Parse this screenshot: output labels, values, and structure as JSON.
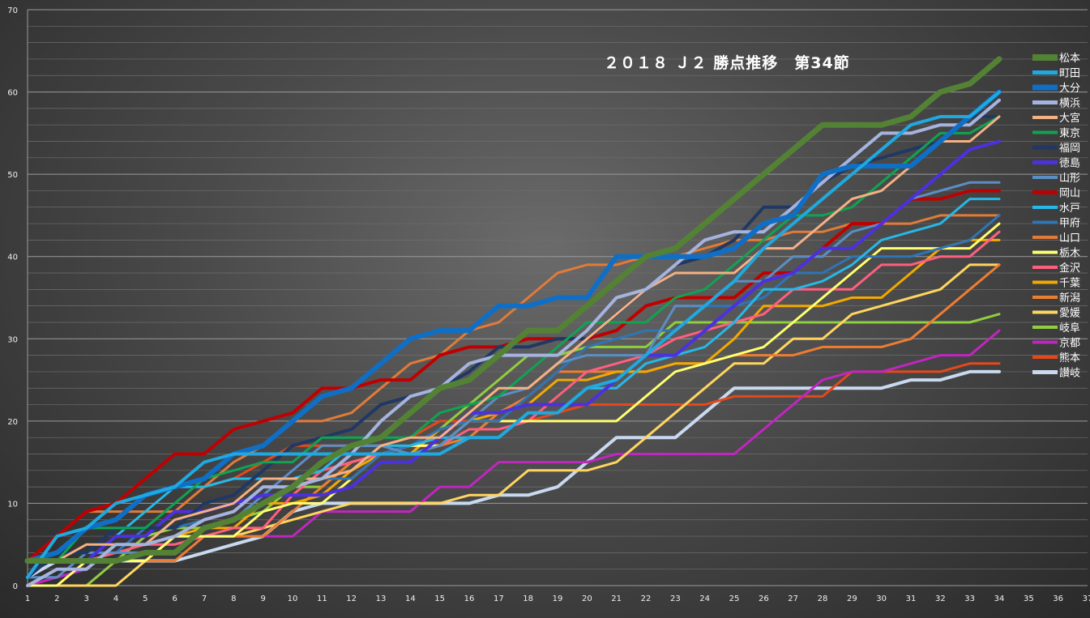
{
  "chart_data": {
    "type": "line",
    "title": "２０１８ Ｊ２ 勝点推移　第34節",
    "xlabel": "",
    "ylabel": "",
    "xlim": [
      1,
      37
    ],
    "ylim": [
      0,
      70
    ],
    "x_ticks": [
      "1",
      "2",
      "3",
      "4",
      "5",
      "6",
      "7",
      "8",
      "9",
      "10",
      "11",
      "12",
      "13",
      "14",
      "15",
      "16",
      "17",
      "18",
      "19",
      "20",
      "21",
      "22",
      "23",
      "24",
      "25",
      "26",
      "27",
      "28",
      "29",
      "30",
      "31",
      "32",
      "33",
      "34",
      "35",
      "36",
      "37"
    ],
    "y_ticks": [
      "0",
      "10",
      "20",
      "30",
      "40",
      "50",
      "60",
      "70"
    ],
    "grid": true,
    "legend_position": "right",
    "series": [
      {
        "name": "松本",
        "color": "#548235",
        "width": 7,
        "values": [
          3,
          3,
          3,
          3,
          4,
          4,
          7,
          8,
          10,
          12,
          15,
          17,
          18,
          21,
          24,
          25,
          28,
          31,
          31,
          34,
          37,
          40,
          41,
          44,
          47,
          50,
          53,
          56,
          56,
          56,
          57,
          60,
          61,
          64
        ]
      },
      {
        "name": "町田",
        "color": "#1fa9e0",
        "width": 4,
        "values": [
          1,
          6,
          7,
          10,
          11,
          12,
          15,
          16,
          16,
          16,
          16,
          16,
          16,
          16,
          16,
          18,
          18,
          21,
          21,
          24,
          25,
          28,
          31,
          34,
          37,
          41,
          44,
          47,
          50,
          53,
          56,
          57,
          57,
          60
        ]
      },
      {
        "name": "大分",
        "color": "#0f6fc6",
        "width": 6,
        "values": [
          3,
          4,
          7,
          8,
          11,
          12,
          13,
          16,
          17,
          20,
          23,
          24,
          27,
          30,
          31,
          31,
          34,
          34,
          35,
          35,
          40,
          40,
          40,
          40,
          41,
          44,
          45,
          50,
          51,
          51,
          51,
          54,
          57,
          60
        ]
      },
      {
        "name": "横浜",
        "color": "#a5b4de",
        "width": 4,
        "values": [
          0,
          2,
          2,
          5,
          5,
          6,
          8,
          9,
          12,
          12,
          13,
          16,
          20,
          23,
          24,
          27,
          28,
          28,
          28,
          31,
          35,
          36,
          39,
          42,
          43,
          43,
          46,
          49,
          52,
          55,
          55,
          56,
          56,
          59
        ]
      },
      {
        "name": "大宮",
        "color": "#f4b183",
        "width": 3,
        "values": [
          3,
          3,
          5,
          5,
          5,
          8,
          9,
          10,
          13,
          13,
          13,
          14,
          17,
          18,
          18,
          21,
          24,
          24,
          27,
          30,
          33,
          36,
          38,
          38,
          38,
          41,
          41,
          44,
          47,
          48,
          51,
          54,
          54,
          57
        ]
      },
      {
        "name": "東京",
        "color": "#10a352",
        "width": 3,
        "values": [
          3,
          3,
          7,
          7,
          7,
          10,
          13,
          14,
          15,
          15,
          18,
          18,
          18,
          18,
          21,
          22,
          23,
          26,
          29,
          32,
          32,
          32,
          35,
          36,
          39,
          42,
          45,
          45,
          46,
          49,
          52,
          55,
          55,
          57
        ]
      },
      {
        "name": "福岡",
        "color": "#203864",
        "width": 4,
        "values": [
          1,
          4,
          4,
          7,
          7,
          7,
          10,
          11,
          14,
          17,
          18,
          19,
          22,
          23,
          24,
          26,
          29,
          29,
          30,
          30,
          33,
          36,
          39,
          40,
          42,
          46,
          46,
          49,
          51,
          52,
          53,
          54,
          57,
          57
        ]
      },
      {
        "name": "徳島",
        "color": "#4b31e0",
        "width": 4,
        "values": [
          3,
          3,
          3,
          6,
          6,
          9,
          9,
          10,
          11,
          11,
          11,
          12,
          15,
          15,
          18,
          21,
          21,
          22,
          22,
          22,
          25,
          28,
          28,
          31,
          34,
          37,
          38,
          41,
          41,
          44,
          47,
          50,
          53,
          54
        ]
      },
      {
        "name": "山形",
        "color": "#5b8ec4",
        "width": 3,
        "values": [
          1,
          1,
          4,
          4,
          4,
          4,
          7,
          8,
          11,
          14,
          17,
          17,
          17,
          16,
          17,
          20,
          23,
          24,
          27,
          28,
          28,
          28,
          34,
          34,
          37,
          37,
          40,
          40,
          43,
          44,
          47,
          48,
          49,
          49
        ]
      },
      {
        "name": "岡山",
        "color": "#c00000",
        "width": 4,
        "values": [
          3,
          6,
          9,
          10,
          13,
          16,
          16,
          19,
          20,
          21,
          24,
          24,
          25,
          25,
          28,
          29,
          29,
          30,
          30,
          30,
          31,
          34,
          35,
          35,
          35,
          38,
          38,
          41,
          44,
          44,
          47,
          47,
          48,
          48
        ]
      },
      {
        "name": "水戸",
        "color": "#26b8e8",
        "width": 3,
        "values": [
          3,
          3,
          3,
          6,
          9,
          12,
          12,
          13,
          13,
          13,
          14,
          17,
          17,
          17,
          18,
          18,
          18,
          21,
          21,
          24,
          24,
          27,
          28,
          29,
          32,
          36,
          36,
          37,
          39,
          42,
          43,
          44,
          47,
          47
        ]
      },
      {
        "name": "甲府",
        "color": "#2e75b6",
        "width": 3,
        "values": [
          1,
          4,
          4,
          4,
          7,
          7,
          8,
          9,
          12,
          12,
          13,
          13,
          16,
          17,
          19,
          20,
          20,
          23,
          26,
          29,
          30,
          31,
          31,
          34,
          34,
          35,
          38,
          38,
          40,
          40,
          40,
          41,
          42,
          45
        ]
      },
      {
        "name": "山口",
        "color": "#e07b39",
        "width": 3,
        "values": [
          3,
          6,
          9,
          9,
          9,
          9,
          12,
          15,
          17,
          20,
          20,
          21,
          24,
          27,
          28,
          31,
          32,
          35,
          38,
          39,
          39,
          40,
          40,
          41,
          42,
          42,
          43,
          43,
          44,
          44,
          44,
          45,
          45,
          45
        ]
      },
      {
        "name": "栃木",
        "color": "#ffff70",
        "width": 3,
        "values": [
          0,
          0,
          3,
          3,
          3,
          6,
          6,
          6,
          9,
          10,
          10,
          13,
          16,
          17,
          17,
          20,
          20,
          20,
          20,
          20,
          20,
          23,
          26,
          27,
          28,
          29,
          32,
          35,
          38,
          41,
          41,
          41,
          41,
          44
        ]
      },
      {
        "name": "金沢",
        "color": "#ff5f7e",
        "width": 3,
        "values": [
          0,
          0,
          3,
          4,
          5,
          5,
          6,
          7,
          7,
          11,
          14,
          15,
          16,
          17,
          17,
          19,
          19,
          20,
          23,
          26,
          27,
          28,
          30,
          31,
          32,
          33,
          36,
          36,
          36,
          39,
          39,
          40,
          40,
          43
        ]
      },
      {
        "name": "千葉",
        "color": "#f2a900",
        "width": 3,
        "values": [
          3,
          3,
          3,
          3,
          3,
          6,
          7,
          7,
          10,
          10,
          11,
          14,
          16,
          16,
          19,
          20,
          21,
          22,
          25,
          25,
          26,
          26,
          27,
          27,
          30,
          34,
          34,
          34,
          35,
          35,
          38,
          41,
          42,
          42
        ]
      },
      {
        "name": "新潟",
        "color": "#ee7d31",
        "width": 3,
        "values": [
          3,
          3,
          3,
          3,
          3,
          3,
          6,
          6,
          6,
          9,
          12,
          15,
          16,
          17,
          17,
          18,
          21,
          23,
          26,
          26,
          26,
          26,
          27,
          27,
          28,
          28,
          28,
          29,
          29,
          29,
          30,
          33,
          36,
          39
        ]
      },
      {
        "name": "愛媛",
        "color": "#ffd55f",
        "width": 3,
        "values": [
          0,
          0,
          0,
          0,
          3,
          6,
          6,
          6,
          7,
          8,
          9,
          10,
          10,
          10,
          10,
          11,
          11,
          14,
          14,
          14,
          15,
          18,
          21,
          24,
          27,
          27,
          30,
          30,
          33,
          34,
          35,
          36,
          39,
          39
        ]
      },
      {
        "name": "岐阜",
        "color": "#8fce3f",
        "width": 3,
        "values": [
          0,
          0,
          0,
          3,
          6,
          7,
          7,
          8,
          9,
          12,
          12,
          15,
          16,
          16,
          19,
          22,
          25,
          28,
          28,
          29,
          29,
          29,
          32,
          32,
          32,
          32,
          32,
          32,
          32,
          32,
          32,
          32,
          32,
          33
        ]
      },
      {
        "name": "京都",
        "color": "#c026c0",
        "width": 3,
        "values": [
          0,
          1,
          2,
          5,
          5,
          5,
          6,
          6,
          6,
          6,
          9,
          9,
          9,
          9,
          12,
          12,
          15,
          15,
          15,
          15,
          16,
          16,
          16,
          16,
          16,
          19,
          22,
          25,
          26,
          26,
          27,
          28,
          28,
          31
        ]
      },
      {
        "name": "熊本",
        "color": "#e5481b",
        "width": 3,
        "values": [
          3,
          3,
          3,
          3,
          6,
          9,
          12,
          13,
          15,
          17,
          17,
          17,
          17,
          18,
          20,
          20,
          20,
          20,
          21,
          22,
          22,
          22,
          22,
          22,
          23,
          23,
          23,
          23,
          26,
          26,
          26,
          26,
          27,
          27
        ]
      },
      {
        "name": "讃岐",
        "color": "#c8d9f0",
        "width": 4,
        "values": [
          1,
          3,
          3,
          3,
          3,
          3,
          4,
          5,
          6,
          9,
          10,
          10,
          10,
          10,
          10,
          10,
          11,
          11,
          12,
          15,
          18,
          18,
          18,
          21,
          24,
          24,
          24,
          24,
          24,
          24,
          25,
          25,
          26,
          26
        ]
      }
    ]
  }
}
